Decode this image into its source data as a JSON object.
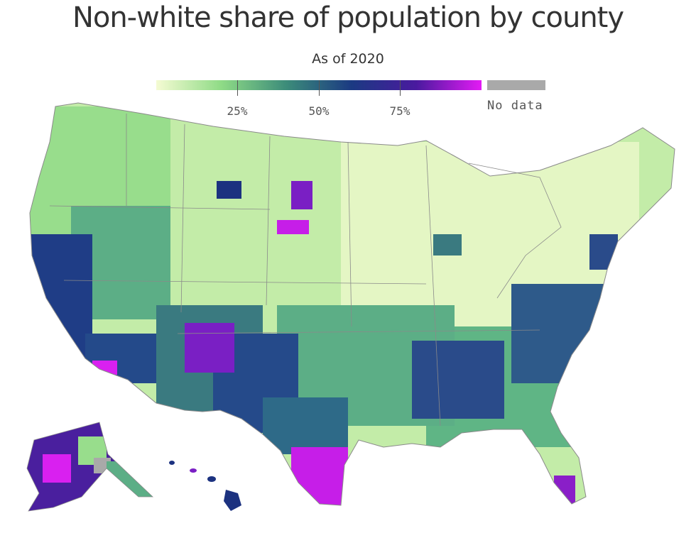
{
  "title": "Non-white share of population by county",
  "subtitle": "As of 2020",
  "legend": {
    "ticks": [
      {
        "label": "25%",
        "value": 25
      },
      {
        "label": "50%",
        "value": 50
      },
      {
        "label": "75%",
        "value": 75
      }
    ],
    "no_data_label": "No data",
    "color_stops": [
      "#f5fbd3",
      "#8fdb86",
      "#3c8c7a",
      "#1b3a82",
      "#4a1a9f",
      "#e31bf4"
    ],
    "no_data_color": "#a9a9a9"
  }
}
